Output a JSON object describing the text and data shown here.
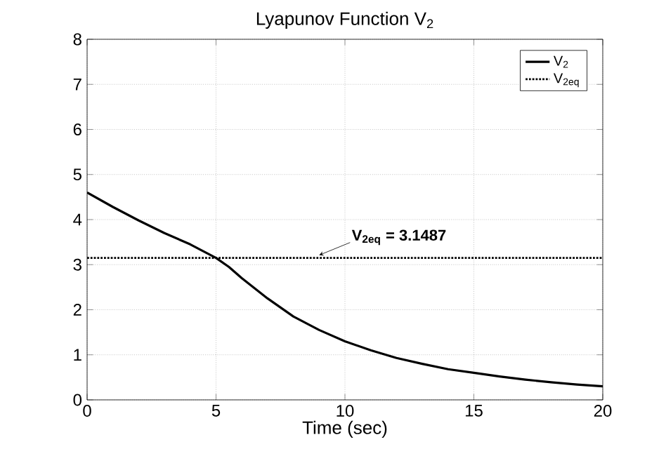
{
  "chart_data": {
    "type": "line",
    "title": "Lyapunov Function V$_{2}$",
    "xlabel": "Time (sec)",
    "xlim": [
      0,
      20
    ],
    "xticks": [
      0,
      5,
      10,
      15,
      20
    ],
    "ylim": [
      0,
      8
    ],
    "yticks": [
      0,
      1,
      2,
      3,
      4,
      5,
      6,
      7,
      8
    ],
    "grid": true,
    "legend": "top right",
    "series": [
      {
        "name": "V$_{2}$",
        "color": "#000000",
        "line_style": "solid",
        "x": [
          0,
          1,
          2,
          3,
          4,
          5,
          5.5,
          6,
          7,
          8,
          9,
          10,
          11,
          12,
          13,
          14,
          15,
          16,
          17,
          18,
          19,
          20
        ],
        "values": [
          4.6,
          4.28,
          3.98,
          3.7,
          3.45,
          3.15,
          2.95,
          2.7,
          2.25,
          1.85,
          1.55,
          1.3,
          1.1,
          0.93,
          0.8,
          0.68,
          0.6,
          0.52,
          0.45,
          0.39,
          0.34,
          0.3
        ]
      },
      {
        "name": "V$_{2eq}$",
        "color": "#000000",
        "line_style": "dotted",
        "x": [
          0,
          20
        ],
        "values": [
          3.1487,
          3.1487
        ]
      }
    ],
    "annotations": [
      {
        "text": "V$_{2eq}$ = 3.1487",
        "x": 9,
        "y": 3.1487
      }
    ]
  }
}
